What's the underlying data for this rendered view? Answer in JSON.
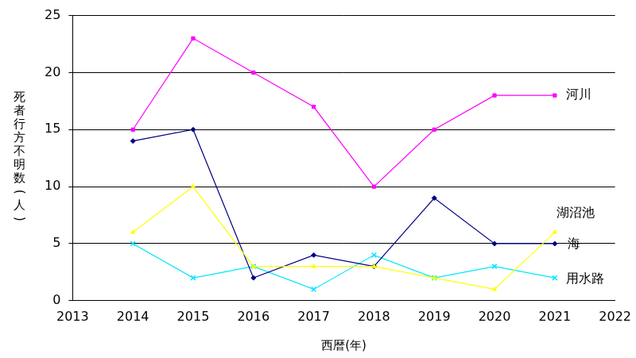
{
  "chart_data": {
    "type": "line",
    "x_label": "西暦(年)",
    "y_label": "死者行方不明数(人)",
    "x": [
      2014,
      2015,
      2016,
      2017,
      2018,
      2019,
      2020,
      2021
    ],
    "series": [
      {
        "name": "河川",
        "color": "#ff00ff",
        "marker": "square",
        "values": [
          15,
          23,
          20,
          17,
          10,
          15,
          18,
          18
        ]
      },
      {
        "name": "湖沼池",
        "color": "#ffff00",
        "marker": "triangle",
        "values": [
          6,
          10,
          3,
          3,
          3,
          2,
          1,
          6
        ]
      },
      {
        "name": "海",
        "color": "#000080",
        "marker": "diamond",
        "values": [
          14,
          15,
          2,
          4,
          3,
          9,
          5,
          5
        ]
      },
      {
        "name": "用水路",
        "color": "#00e5ff",
        "marker": "cross",
        "values": [
          5,
          2,
          3,
          1,
          4,
          2,
          3,
          2
        ]
      }
    ],
    "xlim": [
      2013,
      2022
    ],
    "xticks": [
      2013,
      2014,
      2015,
      2016,
      2017,
      2018,
      2019,
      2020,
      2021,
      2022
    ],
    "ylim": [
      0,
      25
    ],
    "yticks": [
      0,
      5,
      10,
      15,
      20,
      25
    ],
    "grid": true
  }
}
